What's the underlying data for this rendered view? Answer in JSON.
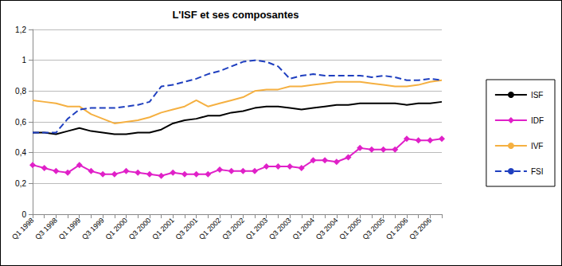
{
  "chart_data": {
    "type": "line",
    "title": "L'ISF et ses composantes",
    "categories": [
      "Q1 1998",
      null,
      "Q3 1998",
      null,
      "Q1 1999",
      null,
      "Q3 1999",
      null,
      "Q1 2000",
      null,
      "Q3 2000",
      null,
      "Q1 2001",
      null,
      "Q3 2001",
      null,
      "Q1 2002",
      null,
      "Q3 2002",
      null,
      "Q1 2003",
      null,
      "Q3 2003",
      null,
      "Q1 2004",
      null,
      "Q3 2004",
      null,
      "Q1 2005",
      null,
      "Q3 2005",
      null,
      "Q1 2006",
      null,
      "Q3 2006",
      null
    ],
    "series": [
      {
        "name": "ISF",
        "color": "#000000",
        "marker": "none",
        "line_style": "solid",
        "values": [
          0.53,
          0.53,
          0.52,
          0.54,
          0.56,
          0.54,
          0.53,
          0.52,
          0.52,
          0.53,
          0.53,
          0.55,
          0.59,
          0.61,
          0.62,
          0.64,
          0.64,
          0.66,
          0.67,
          0.69,
          0.7,
          0.7,
          0.69,
          0.68,
          0.69,
          0.7,
          0.71,
          0.71,
          0.72,
          0.72,
          0.72,
          0.72,
          0.71,
          0.72,
          0.72,
          0.73
        ]
      },
      {
        "name": "IDF",
        "color": "#e020c8",
        "marker": "diamond",
        "line_style": "solid",
        "values": [
          0.32,
          0.3,
          0.28,
          0.27,
          0.32,
          0.28,
          0.26,
          0.26,
          0.28,
          0.27,
          0.26,
          0.25,
          0.27,
          0.26,
          0.26,
          0.26,
          0.29,
          0.28,
          0.28,
          0.28,
          0.31,
          0.31,
          0.31,
          0.3,
          0.35,
          0.35,
          0.34,
          0.37,
          0.43,
          0.42,
          0.42,
          0.42,
          0.49,
          0.48,
          0.48,
          0.49
        ]
      },
      {
        "name": "IVF",
        "color": "#f5b041",
        "marker": "none",
        "line_style": "solid",
        "values": [
          0.74,
          0.73,
          0.72,
          0.7,
          0.7,
          0.65,
          0.62,
          0.59,
          0.6,
          0.61,
          0.63,
          0.66,
          0.68,
          0.7,
          0.74,
          0.7,
          0.72,
          0.74,
          0.76,
          0.8,
          0.81,
          0.81,
          0.83,
          0.83,
          0.84,
          0.85,
          0.86,
          0.86,
          0.86,
          0.85,
          0.84,
          0.83,
          0.83,
          0.84,
          0.86,
          0.87
        ]
      },
      {
        "name": "FSI",
        "color": "#1f3fbf",
        "marker": "none",
        "line_style": "dashed",
        "values": [
          0.53,
          0.53,
          0.53,
          0.62,
          0.68,
          0.69,
          0.69,
          0.69,
          0.7,
          0.71,
          0.73,
          0.83,
          0.84,
          0.86,
          0.88,
          0.91,
          0.93,
          0.96,
          0.99,
          1.0,
          0.99,
          0.96,
          0.88,
          0.9,
          0.91,
          0.9,
          0.9,
          0.9,
          0.9,
          0.89,
          0.9,
          0.89,
          0.87,
          0.87,
          0.88,
          0.87
        ]
      }
    ],
    "ylim": [
      0,
      1.2
    ],
    "yticks": [
      0,
      {
        "value": 0.2,
        "label": "0,2"
      },
      {
        "value": 0.4,
        "label": "0,4"
      },
      {
        "value": 0.6,
        "label": "0,6"
      },
      {
        "value": 0.8,
        "label": "0,8"
      },
      1,
      {
        "value": 1.2,
        "label": "1,2"
      }
    ],
    "grid": true,
    "legend": "right"
  }
}
